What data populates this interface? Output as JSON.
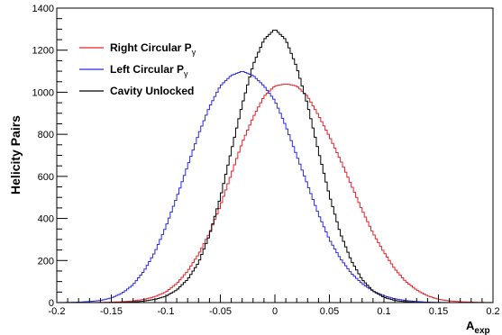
{
  "chart_data": {
    "type": "line",
    "style": "histogram-step",
    "title": "",
    "xlabel": "A",
    "xlabel_sub": "exp",
    "ylabel": "Helicity Pairs",
    "xlim": [
      -0.2,
      0.2
    ],
    "ylim": [
      0,
      1400
    ],
    "x_ticks": [
      "-0.2",
      "-0.15",
      "-0.1",
      "-0.05",
      "0",
      "0.05",
      "0.1",
      "0.15",
      "0.2"
    ],
    "y_ticks": [
      "0",
      "200",
      "400",
      "600",
      "800",
      "1000",
      "1200",
      "1400"
    ],
    "grid": false,
    "legend_position": "top-left",
    "x": [
      -0.2,
      -0.19,
      -0.18,
      -0.17,
      -0.16,
      -0.15,
      -0.14,
      -0.13,
      -0.12,
      -0.11,
      -0.1,
      -0.09,
      -0.08,
      -0.07,
      -0.06,
      -0.05,
      -0.04,
      -0.03,
      -0.02,
      -0.01,
      0,
      0.01,
      0.02,
      0.03,
      0.04,
      0.05,
      0.06,
      0.07,
      0.08,
      0.09,
      0.1,
      0.11,
      0.12,
      0.13,
      0.14,
      0.15,
      0.16,
      0.17,
      0.18,
      0.19,
      0.2
    ],
    "series": [
      {
        "name": "Right Circular P",
        "name_sub": "γ",
        "color": "#e8202a",
        "values": [
          0,
          0,
          0,
          0,
          1,
          2,
          4,
          8,
          15,
          28,
          50,
          90,
          150,
          230,
          330,
          460,
          610,
          760,
          880,
          980,
          1030,
          1040,
          1030,
          980,
          890,
          790,
          680,
          560,
          440,
          330,
          240,
          160,
          100,
          60,
          32,
          16,
          8,
          4,
          2,
          1,
          0
        ]
      },
      {
        "name": "Left Circular P",
        "name_sub": "γ",
        "color": "#2a2ae6",
        "values": [
          0,
          1,
          2,
          5,
          10,
          22,
          45,
          85,
          150,
          240,
          360,
          500,
          650,
          800,
          930,
          1030,
          1080,
          1100,
          1080,
          1030,
          960,
          840,
          700,
          560,
          420,
          300,
          210,
          140,
          90,
          55,
          32,
          18,
          10,
          5,
          2,
          1,
          0,
          0,
          0,
          0,
          0
        ]
      },
      {
        "name": "Cavity Unlocked",
        "name_sub": "",
        "color": "#000000",
        "values": [
          0,
          0,
          0,
          0,
          0,
          0,
          1,
          3,
          7,
          15,
          30,
          60,
          110,
          190,
          320,
          500,
          720,
          940,
          1130,
          1250,
          1300,
          1250,
          1120,
          940,
          720,
          510,
          330,
          200,
          110,
          55,
          25,
          10,
          4,
          1,
          0,
          0,
          0,
          0,
          0,
          0,
          0
        ]
      }
    ]
  }
}
